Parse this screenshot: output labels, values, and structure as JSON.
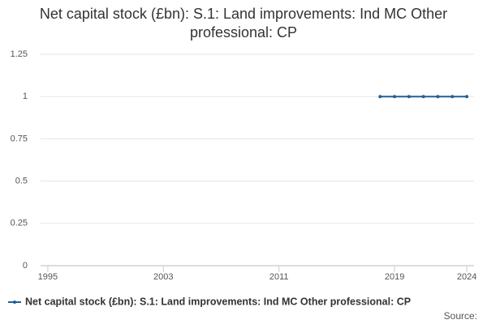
{
  "chart_data": {
    "type": "line",
    "title": "Net capital stock (£bn): S.1: Land improvements: Ind MC Other professional: CP",
    "x": [
      2018,
      2019,
      2020,
      2021,
      2022,
      2023,
      2024
    ],
    "series": [
      {
        "name": "Net capital stock (£bn): S.1: Land improvements: Ind MC Other professional: CP",
        "color": "#206095",
        "values": [
          1,
          1,
          1,
          1,
          1,
          1,
          1
        ]
      }
    ],
    "xlim": [
      1994.5,
      2024.5
    ],
    "xticks": [
      1995,
      2003,
      2011,
      2019,
      2024
    ],
    "ylim": [
      0,
      1.25
    ],
    "yticks": [
      0,
      0.25,
      0.5,
      0.75,
      1,
      1.25
    ],
    "grid": true,
    "legend": "bottom",
    "source_label": "Source:"
  }
}
